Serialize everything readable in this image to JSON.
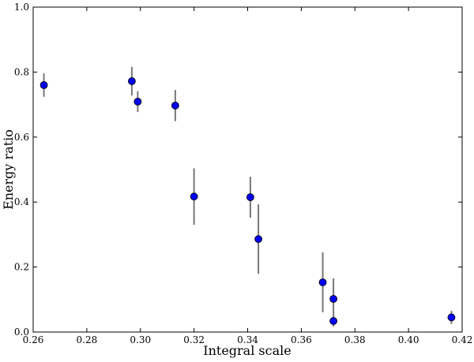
{
  "chart_data": {
    "type": "scatter",
    "x_label": "Integral scale",
    "y_label": "Energy ratio",
    "xlim": [
      0.26,
      0.42
    ],
    "xticks": [
      0.26,
      0.28,
      {
        "value": 0.3,
        "label": "0.30"
      },
      0.32,
      0.34,
      0.36,
      0.38,
      {
        "value": 0.4,
        "label": "0.40"
      },
      0.42
    ],
    "ylim": [
      0,
      1
    ],
    "yticks": [
      {
        "value": 0,
        "label": "0.0"
      },
      0.2,
      0.4,
      0.6,
      0.8,
      {
        "value": 1,
        "label": "1.0"
      }
    ],
    "grid": false,
    "series": [
      {
        "color": "#0000ee",
        "error_color": "#777777",
        "x": [
          0.264,
          0.2968,
          0.299,
          0.313,
          0.32,
          0.341,
          0.344,
          0.368,
          0.372,
          0.372,
          0.416
        ],
        "values": [
          0.76,
          0.772,
          0.709,
          0.697,
          0.417,
          0.415,
          0.286,
          0.153,
          0.102,
          0.034,
          0.045
        ],
        "errors": [
          0.036,
          0.044,
          0.032,
          0.048,
          0.087,
          0.063,
          0.107,
          0.092,
          0.063,
          0.017,
          0.02
        ]
      }
    ]
  }
}
